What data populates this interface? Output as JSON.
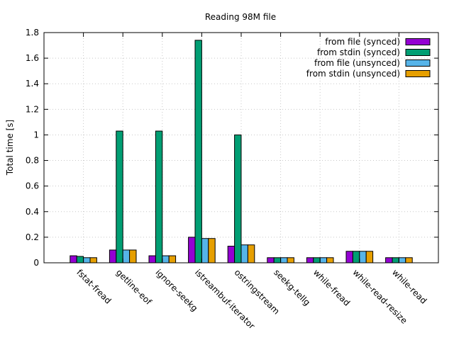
{
  "chart_data": {
    "type": "bar",
    "title": "Reading 98M file",
    "xlabel": "",
    "ylabel": "Total time [s]",
    "ylim": [
      0,
      1.8
    ],
    "yticks": [
      "0",
      "0.2",
      "0.4",
      "0.6",
      "0.8",
      "1",
      "1.2",
      "1.4",
      "1.6",
      "1.8"
    ],
    "grid": true,
    "legend_position": "top-right",
    "categories": [
      "fstat-fread",
      "getline-eof",
      "ignore-seekg",
      "istreambuf-iterator",
      "ostringstream",
      "seekg-tellg",
      "while-fread",
      "while-read-resize",
      "while-read"
    ],
    "series": [
      {
        "name": "from file (synced)",
        "color": "#9400d3",
        "values": [
          0.055,
          0.1,
          0.055,
          0.2,
          0.13,
          0.04,
          0.04,
          0.09,
          0.04
        ]
      },
      {
        "name": "from stdin (synced)",
        "color": "#009e73",
        "values": [
          0.05,
          1.03,
          1.03,
          1.74,
          1.0,
          0.04,
          0.04,
          0.09,
          0.04
        ]
      },
      {
        "name": "from file (unsynced)",
        "color": "#56b4e9",
        "values": [
          0.04,
          0.1,
          0.055,
          0.19,
          0.14,
          0.04,
          0.04,
          0.09,
          0.04
        ]
      },
      {
        "name": "from stdin (unsynced)",
        "color": "#e69f00",
        "values": [
          0.04,
          0.1,
          0.055,
          0.19,
          0.14,
          0.04,
          0.04,
          0.09,
          0.04
        ]
      }
    ]
  }
}
